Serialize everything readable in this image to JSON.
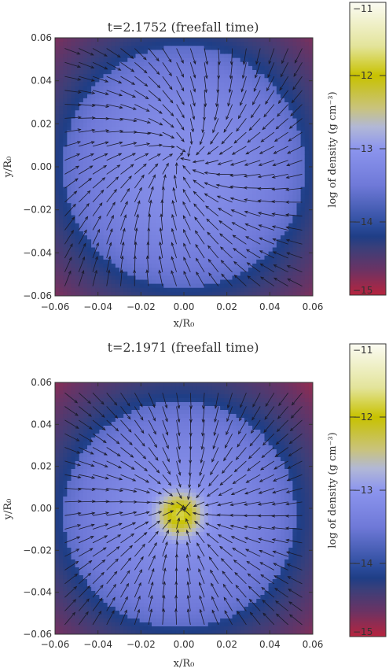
{
  "figure": {
    "colorbar_stops": [
      {
        "v": -15.0,
        "c": "#b7243e"
      },
      {
        "v": -14.65,
        "c": "#6a3364"
      },
      {
        "v": -14.35,
        "c": "#3a3f7a"
      },
      {
        "v": -14.2,
        "c": "#1f3e86"
      },
      {
        "v": -14.05,
        "c": "#2c4c9c"
      },
      {
        "v": -13.5,
        "c": "#6f79d8"
      },
      {
        "v": -13.0,
        "c": "#8c95ee"
      },
      {
        "v": -12.7,
        "c": "#b2b8d6"
      },
      {
        "v": -12.45,
        "c": "#c9c37e"
      },
      {
        "v": -12.0,
        "c": "#c8c200"
      },
      {
        "v": -11.6,
        "c": "#e3e49a"
      },
      {
        "v": -11.0,
        "c": "#fbfbf3"
      }
    ]
  },
  "chart_data": [
    {
      "type": "heatmap",
      "title": "t=2.1752 (freefall time)",
      "xlabel": "x/R₀",
      "ylabel": "y/R₀",
      "xlim": [
        -0.06,
        0.06
      ],
      "ylim": [
        -0.06,
        0.06
      ],
      "xticks": [
        "-0.06",
        "-0.04",
        "-0.02",
        "0.00",
        "0.02",
        "0.04",
        "0.06"
      ],
      "yticks": [
        "-0.06",
        "-0.04",
        "-0.02",
        "0.00",
        "0.02",
        "0.04",
        "0.06"
      ],
      "colorbar": {
        "label": "log of density (g cm⁻³)",
        "range": [
          -15,
          -11
        ],
        "ticks": [
          "-11",
          "-12",
          "-13",
          "-14",
          "-15"
        ]
      },
      "density_model": {
        "center": [
          0.0,
          0.0
        ],
        "radius": 0.056,
        "ring_width": 0.012,
        "core_amp": 0.0,
        "core_sigma": 0.01
      },
      "velocity_field": {
        "grid_step": 0.0065,
        "center": [
          0.0,
          0.005
        ],
        "inflow": 0.9,
        "swirl": 0.35,
        "arrow_max": 0.0075
      },
      "series": [
        {
          "values": [
            [
              -0.06,
              -0.06,
              -14.9
            ],
            [
              0.0,
              0.0,
              -13.1
            ],
            [
              0.06,
              0.06,
              -14.9
            ]
          ]
        }
      ]
    },
    {
      "type": "heatmap",
      "title": "t=2.1971 (freefall time)",
      "xlabel": "x/R₀",
      "ylabel": "y/R₀",
      "xlim": [
        -0.06,
        0.06
      ],
      "ylim": [
        -0.06,
        0.06
      ],
      "xticks": [
        "-0.06",
        "-0.04",
        "-0.02",
        "0.00",
        "0.02",
        "0.04",
        "0.06"
      ],
      "yticks": [
        "-0.06",
        "-0.04",
        "-0.02",
        "0.00",
        "0.02",
        "0.04",
        "0.06"
      ],
      "colorbar": {
        "label": "log of density (g cm⁻³)",
        "range": [
          -15,
          -11
        ],
        "ticks": [
          "-11",
          "-12",
          "-13",
          "-14",
          "-15"
        ]
      },
      "density_model": {
        "center": [
          -0.002,
          -0.003
        ],
        "radius": 0.054,
        "ring_width": 0.012,
        "core_amp": 1.3,
        "core_sigma": 0.007
      },
      "velocity_field": {
        "grid_step": 0.0065,
        "center": [
          0.0,
          0.0
        ],
        "inflow": 1.0,
        "swirl": 0.1,
        "arrow_max": 0.0075
      },
      "series": [
        {
          "values": [
            [
              -0.06,
              -0.06,
              -14.9
            ],
            [
              0.0,
              0.0,
              -12.1
            ],
            [
              0.06,
              0.06,
              -14.9
            ]
          ]
        }
      ]
    }
  ]
}
